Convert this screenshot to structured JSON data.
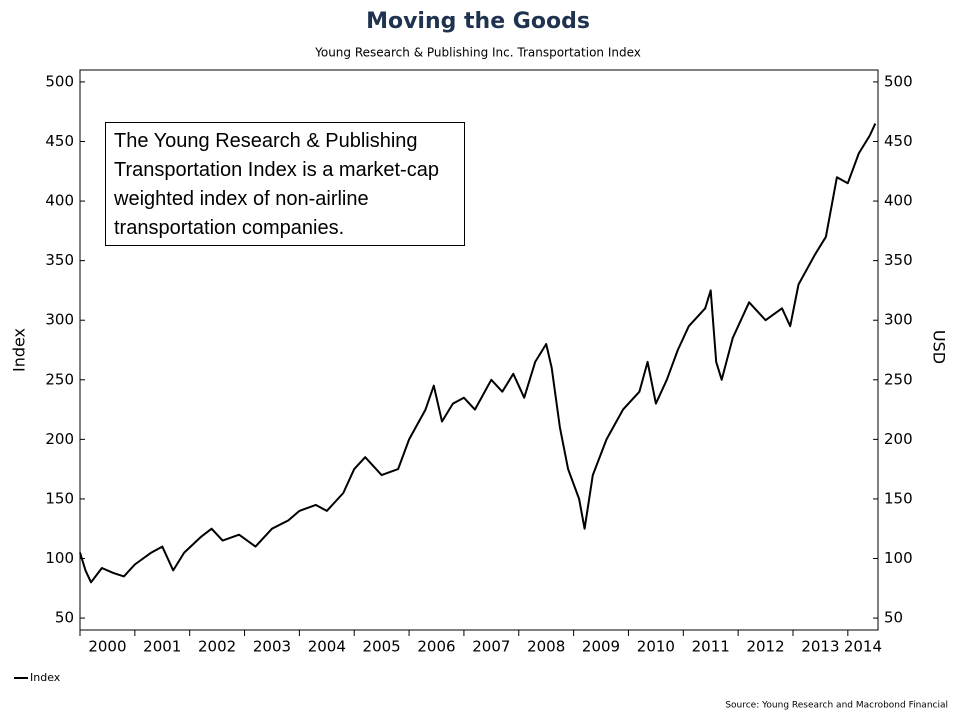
{
  "chart_data": {
    "type": "line",
    "title": "Moving the Goods",
    "subtitle": "Young Research & Publishing Inc. Transportation Index",
    "y_label": "Index",
    "y2_label": "USD",
    "annotation": "The Young Research & Publishing Transportation Index is a market-cap weighted index of non-airline transportation companies.",
    "source": "Source: Young Research and Macrobond Financial",
    "x": [
      2000.0,
      2000.1,
      2000.2,
      2000.4,
      2000.6,
      2000.8,
      2001.0,
      2001.3,
      2001.5,
      2001.7,
      2001.9,
      2002.2,
      2002.4,
      2002.6,
      2002.9,
      2003.2,
      2003.5,
      2003.8,
      2004.0,
      2004.3,
      2004.5,
      2004.8,
      2005.0,
      2005.2,
      2005.5,
      2005.8,
      2006.0,
      2006.3,
      2006.45,
      2006.6,
      2006.8,
      2007.0,
      2007.2,
      2007.5,
      2007.7,
      2007.9,
      2008.1,
      2008.3,
      2008.5,
      2008.6,
      2008.75,
      2008.9,
      2009.1,
      2009.2,
      2009.35,
      2009.6,
      2009.9,
      2010.2,
      2010.35,
      2010.5,
      2010.7,
      2010.9,
      2011.1,
      2011.4,
      2011.5,
      2011.6,
      2011.7,
      2011.9,
      2012.2,
      2012.5,
      2012.8,
      2012.95,
      2013.1,
      2013.4,
      2013.6,
      2013.8,
      2014.0,
      2014.2,
      2014.4,
      2014.5
    ],
    "series": [
      {
        "name": "Index",
        "color": "#000000",
        "axis": "y",
        "values": [
          105,
          90,
          80,
          92,
          88,
          85,
          95,
          105,
          110,
          90,
          105,
          118,
          125,
          115,
          120,
          110,
          125,
          132,
          140,
          145,
          140,
          155,
          175,
          185,
          170,
          175,
          200,
          225,
          245,
          215,
          230,
          235,
          225,
          250,
          240,
          255,
          235,
          265,
          280,
          260,
          210,
          175,
          150,
          125,
          170,
          200,
          225,
          240,
          265,
          230,
          250,
          275,
          295,
          310,
          325,
          265,
          250,
          285,
          315,
          300,
          310,
          295,
          330,
          355,
          370,
          420,
          415,
          440,
          455,
          465
        ]
      }
    ],
    "xlim": [
      2000,
      2014.55
    ],
    "xticks": [
      2000,
      2001,
      2002,
      2003,
      2004,
      2005,
      2006,
      2007,
      2008,
      2009,
      2010,
      2011,
      2012,
      2013,
      2014
    ],
    "ylim": [
      40,
      510
    ],
    "yticks": [
      50,
      100,
      150,
      200,
      250,
      300,
      350,
      400,
      450,
      500
    ],
    "y2lim": [
      40,
      510
    ],
    "y2ticks": [
      50,
      100,
      150,
      200,
      250,
      300,
      350,
      400,
      450,
      500
    ],
    "legend": "bottom-left"
  }
}
